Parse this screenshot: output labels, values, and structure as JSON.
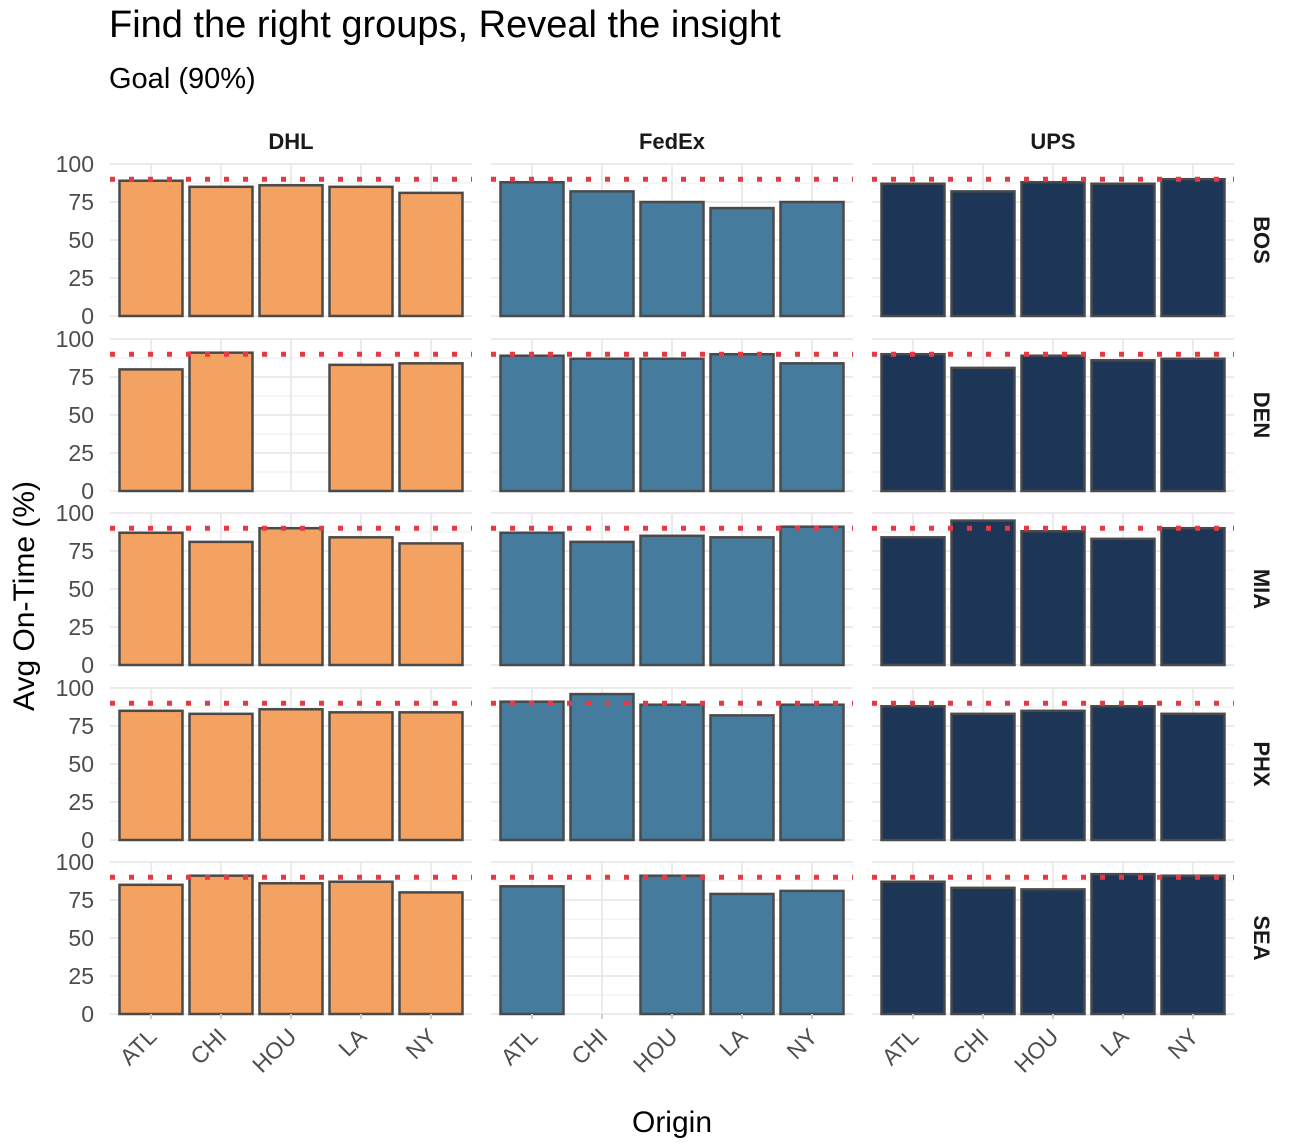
{
  "chart_data": {
    "type": "bar",
    "title": "Find the right groups, Reveal the insight",
    "subtitle": "Goal (90%)",
    "xlabel": "Origin",
    "ylabel": "Avg On-Time (%)",
    "ylim": [
      0,
      100
    ],
    "yticks": [
      0,
      25,
      50,
      75,
      100
    ],
    "goal": 90,
    "grid": true,
    "facet_columns": [
      "DHL",
      "FedEx",
      "UPS"
    ],
    "facet_rows": [
      "BOS",
      "DEN",
      "MIA",
      "PHX",
      "SEA"
    ],
    "categories": [
      "ATL",
      "CHI",
      "HOU",
      "LA",
      "NY"
    ],
    "colors": {
      "DHL": "#f4a261",
      "FedEx": "#457b9d",
      "UPS": "#1d3557",
      "bar_outline": "#4a4a4a",
      "goal_line": "#e63946",
      "grid": "#ebebeb"
    },
    "panels": [
      {
        "carrier": "DHL",
        "destination": "BOS",
        "values": [
          89,
          85,
          86,
          85,
          81
        ]
      },
      {
        "carrier": "FedEx",
        "destination": "BOS",
        "values": [
          88,
          82,
          75,
          71,
          75
        ]
      },
      {
        "carrier": "UPS",
        "destination": "BOS",
        "values": [
          87,
          82,
          88,
          87,
          90
        ]
      },
      {
        "carrier": "DHL",
        "destination": "DEN",
        "values": [
          80,
          91,
          null,
          83,
          84
        ]
      },
      {
        "carrier": "FedEx",
        "destination": "DEN",
        "values": [
          89,
          87,
          87,
          90,
          84
        ]
      },
      {
        "carrier": "UPS",
        "destination": "DEN",
        "values": [
          90,
          81,
          89,
          86,
          87
        ]
      },
      {
        "carrier": "DHL",
        "destination": "MIA",
        "values": [
          87,
          81,
          90,
          84,
          80
        ]
      },
      {
        "carrier": "FedEx",
        "destination": "MIA",
        "values": [
          87,
          81,
          85,
          84,
          91
        ]
      },
      {
        "carrier": "UPS",
        "destination": "MIA",
        "values": [
          84,
          95,
          88,
          83,
          90
        ]
      },
      {
        "carrier": "DHL",
        "destination": "PHX",
        "values": [
          85,
          83,
          86,
          84,
          84
        ]
      },
      {
        "carrier": "FedEx",
        "destination": "PHX",
        "values": [
          91,
          96,
          89,
          82,
          89
        ]
      },
      {
        "carrier": "UPS",
        "destination": "PHX",
        "values": [
          88,
          83,
          85,
          88,
          83
        ]
      },
      {
        "carrier": "DHL",
        "destination": "SEA",
        "values": [
          85,
          91,
          86,
          87,
          80
        ]
      },
      {
        "carrier": "FedEx",
        "destination": "SEA",
        "values": [
          84,
          null,
          91,
          79,
          81
        ]
      },
      {
        "carrier": "UPS",
        "destination": "SEA",
        "values": [
          87,
          83,
          82,
          92,
          91
        ]
      }
    ]
  }
}
